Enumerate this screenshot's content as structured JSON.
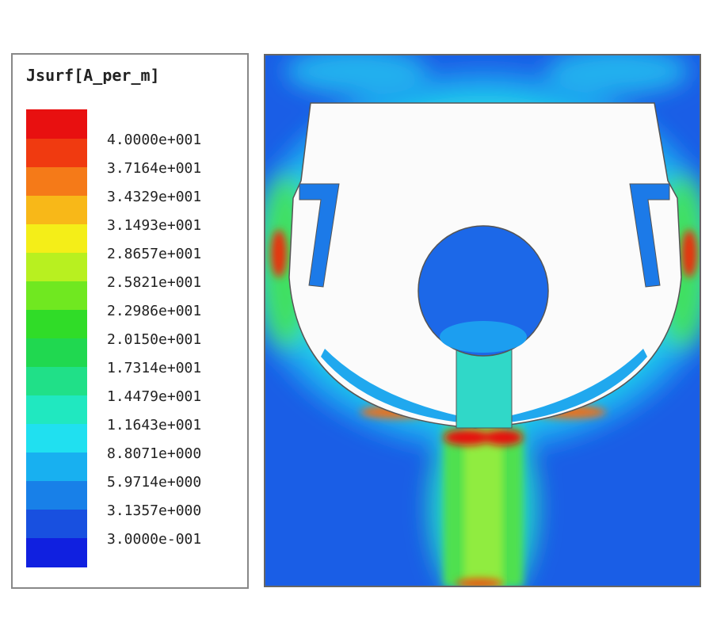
{
  "legend": {
    "title": "Jsurf[A_per_m]",
    "labels": [
      "4.0000e+001",
      "3.7164e+001",
      "3.4329e+001",
      "3.1493e+001",
      "2.8657e+001",
      "2.5821e+001",
      "2.2986e+001",
      "2.0150e+001",
      "1.7314e+001",
      "1.4479e+001",
      "1.1643e+001",
      "8.8071e+000",
      "5.9714e+000",
      "3.1357e+000",
      "3.0000e-001"
    ]
  }
}
